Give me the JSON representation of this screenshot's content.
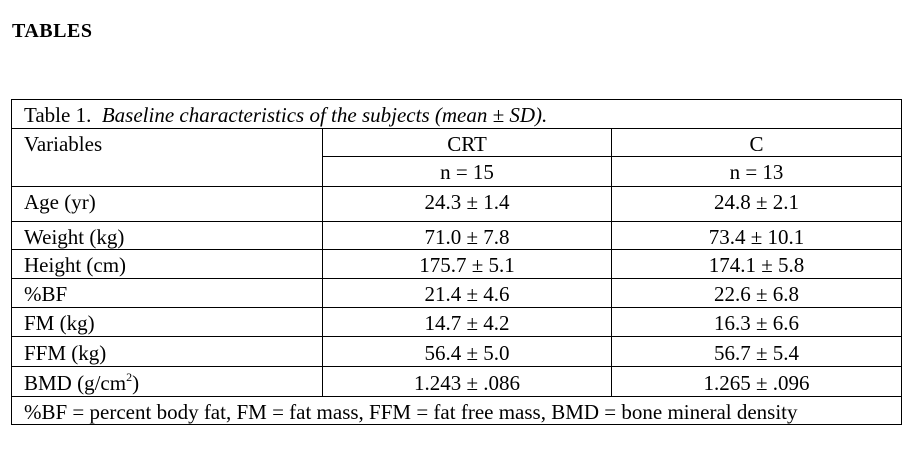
{
  "heading": "TABLES",
  "table": {
    "caption_label": "Table 1.",
    "caption_text": "Baseline characteristics of the subjects  (mean ± SD).",
    "variables_header": "Variables",
    "groups": [
      {
        "name": "CRT",
        "n": "n = 15"
      },
      {
        "name": "C",
        "n": "n = 13"
      }
    ],
    "rows": [
      {
        "label": "Age (yr)",
        "crt": "24.3 ± 1.4",
        "c": "24.8 ± 2.1"
      },
      {
        "label": "Weight (kg)",
        "crt": "71.0 ± 7.8",
        "c": "73.4 ± 10.1"
      },
      {
        "label": "Height (cm)",
        "crt": "175.7 ± 5.1",
        "c": "174.1 ± 5.8"
      },
      {
        "label": "%BF",
        "crt": "21.4 ± 4.6",
        "c": "22.6 ± 6.8"
      },
      {
        "label": "FM (kg)",
        "crt": "14.7 ± 4.2",
        "c": "16.3 ± 6.6"
      },
      {
        "label": "FFM (kg)",
        "crt": "56.4 ± 5.0",
        "c": "56.7 ± 5.4"
      },
      {
        "label": "BMD (g/cm",
        "label_sup": "2",
        "label_end": ")",
        "crt": "1.243 ± .086",
        "c": "1.265 ± .096"
      }
    ],
    "footnote": "%BF = percent body fat, FM = fat mass, FFM = fat free mass, BMD = bone mineral density"
  }
}
